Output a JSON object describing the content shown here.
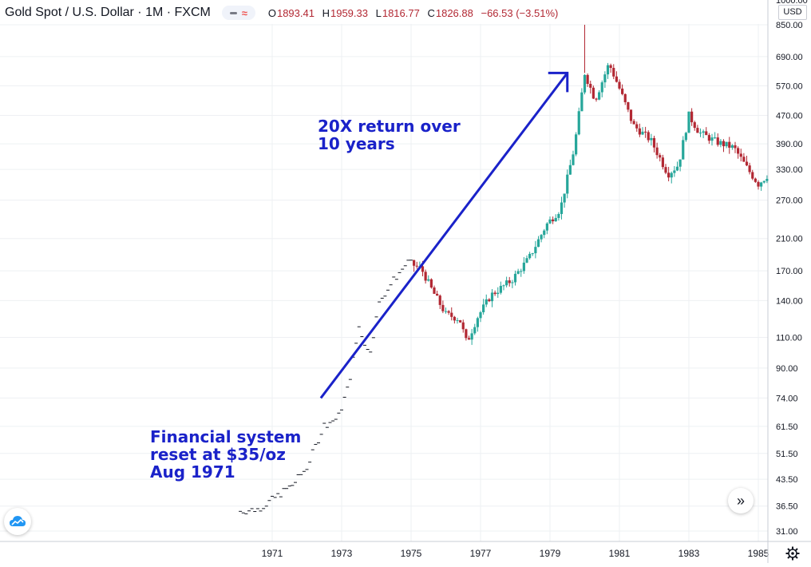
{
  "header": {
    "title": "Gold Spot / U.S. Dollar · 1M · FXCM",
    "ohlc": [
      {
        "label": "O",
        "value": "1893.41"
      },
      {
        "label": "H",
        "value": "1959.33"
      },
      {
        "label": "L",
        "value": "1816.77"
      },
      {
        "label": "C",
        "value": "1826.88"
      }
    ],
    "change": "−66.53 (−3.51%)"
  },
  "currency": "USD",
  "icons": {
    "logo": "tradingview-cloud-icon",
    "scroll": "double-chevron-right-icon",
    "settings": "gear-icon"
  },
  "colors": {
    "up": "#26a69a",
    "down": "#b22833",
    "annotation": "#1a22c9",
    "grid": "#eef0f3"
  },
  "annotations": [
    {
      "lines": [
        "20X return over",
        "10 years"
      ]
    },
    {
      "lines": [
        "Financial system",
        "reset at $35/oz",
        "Aug 1971"
      ]
    }
  ],
  "chart_data": {
    "type": "candlestick",
    "y_scale": "log",
    "y_ticks": [
      "1000.00",
      "850.00",
      "690.00",
      "570.00",
      "470.00",
      "390.00",
      "330.00",
      "270.00",
      "210.00",
      "170.00",
      "140.00",
      "110.00",
      "90.00",
      "74.00",
      "61.50",
      "51.50",
      "43.50",
      "36.50",
      "31.00"
    ],
    "x_ticks": [
      "1971",
      "1973",
      "1975",
      "1977",
      "1979",
      "1981",
      "1983",
      "1985"
    ],
    "arrow": {
      "from": {
        "x": 1972.4,
        "y": 74
      },
      "to": {
        "x": 1979.5,
        "y": 620
      }
    },
    "candles": []
  }
}
